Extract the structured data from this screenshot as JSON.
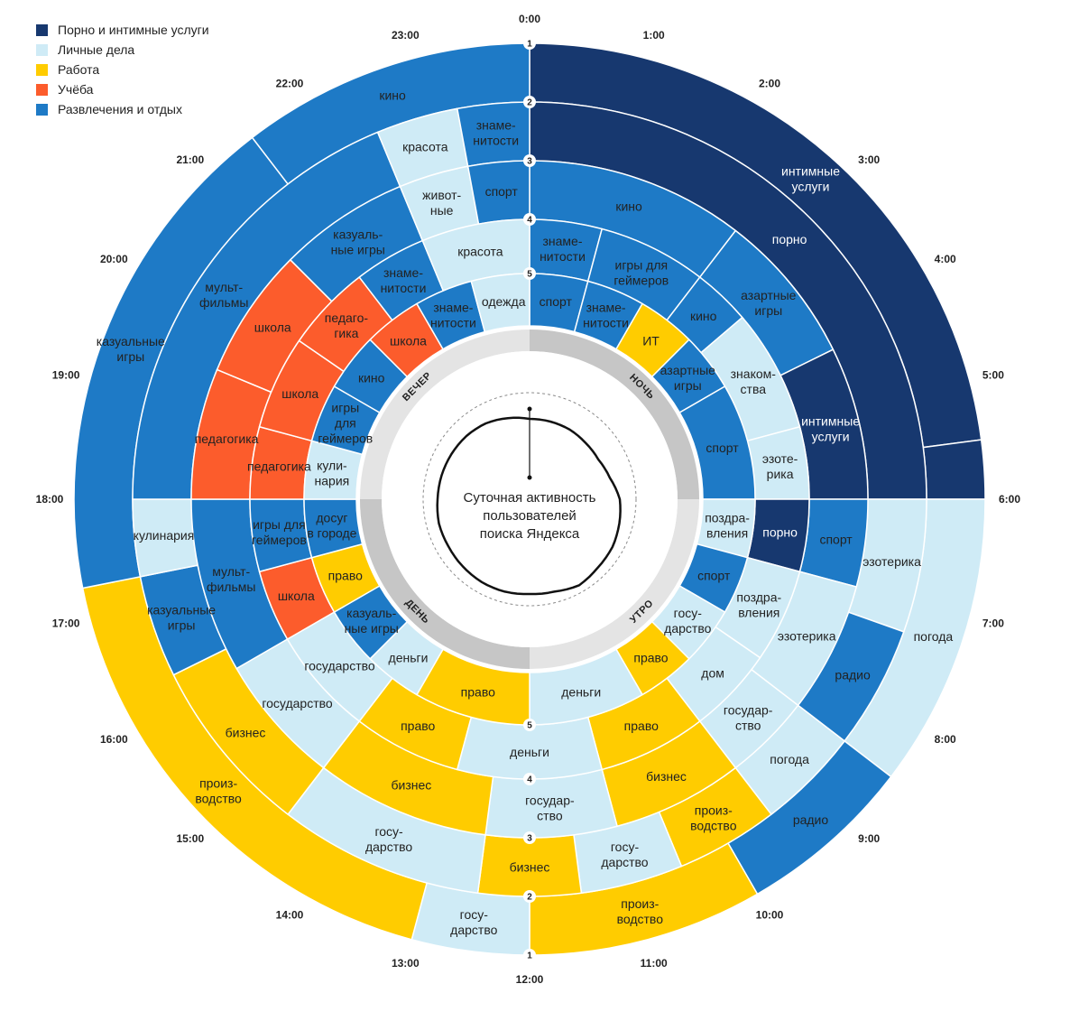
{
  "legend": [
    {
      "label": "Порно и интимные услуги",
      "color": "#17386f"
    },
    {
      "label": "Личные дела",
      "color": "#cfebf6"
    },
    {
      "label": "Работа",
      "color": "#ffcc00"
    },
    {
      "label": "Учёба",
      "color": "#fc5c2c"
    },
    {
      "label": "Развлечения и отдых",
      "color": "#1e7ac6"
    }
  ],
  "categories": {
    "porn": {
      "color": "#17386f",
      "text": "#ffffff"
    },
    "pers": {
      "color": "#cfebf6",
      "text": "#222222"
    },
    "work": {
      "color": "#ffcc00",
      "text": "#222222"
    },
    "study": {
      "color": "#fc5c2c",
      "text": "#222222"
    },
    "ent": {
      "color": "#1e7ac6",
      "text": "#222222"
    }
  },
  "center_title": [
    "Суточная активность",
    "пользователей",
    "поиска Яндекса"
  ],
  "periods": [
    "НОЧЬ",
    "УТРО",
    "ДЕНЬ",
    "ВЕЧЕР"
  ],
  "ring_numbers": [
    "1",
    "2",
    "3",
    "4",
    "5"
  ],
  "hours": [
    "0:00",
    "1:00",
    "2:00",
    "3:00",
    "4:00",
    "5:00",
    "6:00",
    "7:00",
    "8:00",
    "9:00",
    "10:00",
    "11:00",
    "12:00",
    "13:00",
    "14:00",
    "15:00",
    "16:00",
    "17:00",
    "18:00",
    "19:00",
    "20:00",
    "21:00",
    "22:00",
    "23:00"
  ],
  "rings": [
    [
      {
        "a0": 0,
        "a1": 5.5,
        "cat": "porn",
        "label": "интимные|услуги"
      },
      {
        "a0": 5.5,
        "a1": 6,
        "cat": "porn",
        "label": ""
      },
      {
        "a0": 6,
        "a1": 8.5,
        "cat": "pers",
        "label": "погода"
      },
      {
        "a0": 8.5,
        "a1": 10,
        "cat": "ent",
        "label": "радио"
      },
      {
        "a0": 10,
        "a1": 12,
        "cat": "work",
        "label": "произ-|водство"
      },
      {
        "a0": 12,
        "a1": 13,
        "cat": "pers",
        "label": "госу-|дарство"
      },
      {
        "a0": 13,
        "a1": 17.25,
        "cat": "work",
        "label": "произ-|водство"
      },
      {
        "a0": 17.25,
        "a1": 21.5,
        "cat": "ent",
        "label": "казуальные|игры"
      },
      {
        "a0": 21.5,
        "a1": 24,
        "cat": "ent",
        "label": "кино"
      }
    ],
    [
      {
        "a0": 0,
        "a1": 6,
        "cat": "porn",
        "label": "порно"
      },
      {
        "a0": 6,
        "a1": 7.3,
        "cat": "pers",
        "label": "эзотерика"
      },
      {
        "a0": 7.3,
        "a1": 8.5,
        "cat": "ent",
        "label": "радио"
      },
      {
        "a0": 8.5,
        "a1": 9.5,
        "cat": "pers",
        "label": "погода"
      },
      {
        "a0": 9.5,
        "a1": 10.5,
        "cat": "work",
        "label": "произ-|водство"
      },
      {
        "a0": 10.5,
        "a1": 11.5,
        "cat": "pers",
        "label": "госу-|дарство"
      },
      {
        "a0": 11.5,
        "a1": 12.5,
        "cat": "work",
        "label": "бизнес"
      },
      {
        "a0": 12.5,
        "a1": 14.5,
        "cat": "pers",
        "label": "госу-|дарство"
      },
      {
        "a0": 14.5,
        "a1": 16.25,
        "cat": "work",
        "label": "бизнес"
      },
      {
        "a0": 16.25,
        "a1": 17.25,
        "cat": "ent",
        "label": "казуальные|игры"
      },
      {
        "a0": 17.25,
        "a1": 18,
        "cat": "pers",
        "label": "кулинария"
      },
      {
        "a0": 18,
        "a1": 22.5,
        "cat": "ent",
        "label": "мульт-|фильмы"
      },
      {
        "a0": 22.5,
        "a1": 23.3,
        "cat": "pers",
        "label": "красота"
      },
      {
        "a0": 23.3,
        "a1": 24,
        "cat": "ent",
        "label": "знаме-|нитости"
      }
    ],
    [
      {
        "a0": 0,
        "a1": 2.5,
        "cat": "ent",
        "label": "кино"
      },
      {
        "a0": 2.5,
        "a1": 4.25,
        "cat": "ent",
        "label": "азартные|игры"
      },
      {
        "a0": 4.25,
        "a1": 6,
        "cat": "porn",
        "label": "интимные|услуги"
      },
      {
        "a0": 6,
        "a1": 7,
        "cat": "ent",
        "label": "спорт"
      },
      {
        "a0": 7,
        "a1": 8.5,
        "cat": "pers",
        "label": "эзотерика"
      },
      {
        "a0": 8.5,
        "a1": 9.5,
        "cat": "pers",
        "label": "государ-|ство"
      },
      {
        "a0": 9.5,
        "a1": 11,
        "cat": "work",
        "label": "бизнес"
      },
      {
        "a0": 11,
        "a1": 12.5,
        "cat": "pers",
        "label": "государ-|ство"
      },
      {
        "a0": 12.5,
        "a1": 14.5,
        "cat": "work",
        "label": "бизнес"
      },
      {
        "a0": 14.5,
        "a1": 16,
        "cat": "pers",
        "label": "государство"
      },
      {
        "a0": 16,
        "a1": 18,
        "cat": "ent",
        "label": "мульт-|фильмы"
      },
      {
        "a0": 18,
        "a1": 19.5,
        "cat": "study",
        "label": "педагогика"
      },
      {
        "a0": 19.5,
        "a1": 21,
        "cat": "study",
        "label": "школа"
      },
      {
        "a0": 21,
        "a1": 22.5,
        "cat": "ent",
        "label": "казуаль-|ные игры"
      },
      {
        "a0": 22.5,
        "a1": 23.3,
        "cat": "pers",
        "label": "живот-|ные"
      },
      {
        "a0": 23.3,
        "a1": 24,
        "cat": "ent",
        "label": "спорт"
      }
    ],
    [
      {
        "a0": 0,
        "a1": 1,
        "cat": "ent",
        "label": "знаме-|нитости"
      },
      {
        "a0": 1,
        "a1": 2.5,
        "cat": "ent",
        "label": "игры для|геймеров"
      },
      {
        "a0": 2.5,
        "a1": 3.3,
        "cat": "ent",
        "label": "кино"
      },
      {
        "a0": 3.3,
        "a1": 5,
        "cat": "pers",
        "label": "знаком-|ства"
      },
      {
        "a0": 5,
        "a1": 6,
        "cat": "pers",
        "label": "эзоте-|рика"
      },
      {
        "a0": 6,
        "a1": 7,
        "cat": "porn",
        "label": "порно"
      },
      {
        "a0": 7,
        "a1": 8.3,
        "cat": "pers",
        "label": "поздра-|вления"
      },
      {
        "a0": 8.3,
        "a1": 9.5,
        "cat": "pers",
        "label": "дом"
      },
      {
        "a0": 9.5,
        "a1": 11,
        "cat": "work",
        "label": "право"
      },
      {
        "a0": 11,
        "a1": 13,
        "cat": "pers",
        "label": "деньги"
      },
      {
        "a0": 13,
        "a1": 14.5,
        "cat": "work",
        "label": "право"
      },
      {
        "a0": 14.5,
        "a1": 16,
        "cat": "pers",
        "label": "государство"
      },
      {
        "a0": 16,
        "a1": 17,
        "cat": "study",
        "label": "школа"
      },
      {
        "a0": 17,
        "a1": 18,
        "cat": "ent",
        "label": "игры для|геймеров"
      },
      {
        "a0": 18,
        "a1": 19,
        "cat": "study",
        "label": "педагогика"
      },
      {
        "a0": 19,
        "a1": 20.3,
        "cat": "study",
        "label": "школа"
      },
      {
        "a0": 20.3,
        "a1": 21.5,
        "cat": "study",
        "label": "педаго-|гика"
      },
      {
        "a0": 21.5,
        "a1": 22.5,
        "cat": "ent",
        "label": "знаме-|нитости"
      },
      {
        "a0": 22.5,
        "a1": 24,
        "cat": "pers",
        "label": "красота"
      }
    ],
    [
      {
        "a0": 0,
        "a1": 1,
        "cat": "ent",
        "label": "спорт"
      },
      {
        "a0": 1,
        "a1": 2,
        "cat": "ent",
        "label": "знаме-|нитости"
      },
      {
        "a0": 2,
        "a1": 3,
        "cat": "work",
        "label": "ИТ"
      },
      {
        "a0": 3,
        "a1": 4,
        "cat": "ent",
        "label": "азартные|игры"
      },
      {
        "a0": 4,
        "a1": 6,
        "cat": "ent",
        "label": "спорт"
      },
      {
        "a0": 6,
        "a1": 7,
        "cat": "pers",
        "label": "поздра-|вления"
      },
      {
        "a0": 7,
        "a1": 8,
        "cat": "ent",
        "label": "спорт"
      },
      {
        "a0": 8,
        "a1": 9,
        "cat": "pers",
        "label": "госу-|дарство"
      },
      {
        "a0": 9,
        "a1": 10,
        "cat": "work",
        "label": "право"
      },
      {
        "a0": 10,
        "a1": 12,
        "cat": "pers",
        "label": "деньги"
      },
      {
        "a0": 12,
        "a1": 14,
        "cat": "work",
        "label": "право"
      },
      {
        "a0": 14,
        "a1": 15,
        "cat": "pers",
        "label": "деньги"
      },
      {
        "a0": 15,
        "a1": 16,
        "cat": "ent",
        "label": "казуаль-|ные игры"
      },
      {
        "a0": 16,
        "a1": 17,
        "cat": "work",
        "label": "право"
      },
      {
        "a0": 17,
        "a1": 18,
        "cat": "ent",
        "label": "досуг|в городе"
      },
      {
        "a0": 18,
        "a1": 19,
        "cat": "pers",
        "label": "кули-|нария"
      },
      {
        "a0": 19,
        "a1": 20,
        "cat": "ent",
        "label": "игры|для|геймеров"
      },
      {
        "a0": 20,
        "a1": 21,
        "cat": "ent",
        "label": "кино"
      },
      {
        "a0": 21,
        "a1": 22,
        "cat": "study",
        "label": "школа"
      },
      {
        "a0": 22,
        "a1": 23,
        "cat": "ent",
        "label": "знаме-|нитости"
      },
      {
        "a0": 23,
        "a1": 24,
        "cat": "pers",
        "label": "одежда"
      }
    ]
  ]
}
